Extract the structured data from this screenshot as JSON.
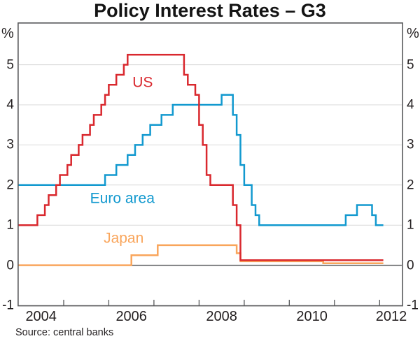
{
  "title": "Policy Interest Rates – G3",
  "source_note": "Source: central banks",
  "axis_unit": "%",
  "frame_color": "#58595b",
  "gridline_color": "#d9d9d9",
  "chart_data": {
    "type": "line",
    "subtype": "step",
    "title": "Policy Interest Rates – G3",
    "ylabel": "%",
    "ylim": [
      -1,
      6.03
    ],
    "xlim": [
      2004,
      2012.5
    ],
    "grid": "horizontal",
    "gridline_values": [
      1,
      2,
      3,
      4,
      5
    ],
    "zero_line_value": 0,
    "ytick_values": [
      5,
      4,
      3,
      2,
      1,
      0,
      -1
    ],
    "xtick_values": [
      2005,
      2006,
      2007,
      2008,
      2009,
      2010,
      2011,
      2012
    ],
    "xtick_labels": [
      {
        "text": "2004",
        "x": 2004.5
      },
      {
        "text": "2006",
        "x": 2006.5
      },
      {
        "text": "2008",
        "x": 2008.5
      },
      {
        "text": "2010",
        "x": 2010.5
      },
      {
        "text": "2012",
        "x": 2012.26
      }
    ],
    "series_end_x": 2012.083,
    "series": [
      {
        "name": "US",
        "color": "#d9282e",
        "label": {
          "text": "US",
          "x": 2006.75,
          "y": 4.56
        },
        "points": [
          [
            2004.0,
            1.0
          ],
          [
            2004.417,
            1.25
          ],
          [
            2004.583,
            1.5
          ],
          [
            2004.667,
            1.75
          ],
          [
            2004.833,
            2.0
          ],
          [
            2004.917,
            2.25
          ],
          [
            2005.083,
            2.5
          ],
          [
            2005.167,
            2.75
          ],
          [
            2005.333,
            3.0
          ],
          [
            2005.417,
            3.25
          ],
          [
            2005.583,
            3.5
          ],
          [
            2005.667,
            3.75
          ],
          [
            2005.833,
            4.0
          ],
          [
            2005.917,
            4.25
          ],
          [
            2006.0,
            4.5
          ],
          [
            2006.167,
            4.75
          ],
          [
            2006.333,
            5.0
          ],
          [
            2006.417,
            5.25
          ],
          [
            2007.667,
            4.75
          ],
          [
            2007.75,
            4.5
          ],
          [
            2007.917,
            4.25
          ],
          [
            2008.0,
            3.5
          ],
          [
            2008.083,
            3.0
          ],
          [
            2008.167,
            2.25
          ],
          [
            2008.25,
            2.0
          ],
          [
            2008.75,
            1.5
          ],
          [
            2008.833,
            1.0
          ],
          [
            2008.917,
            0.125
          ]
        ]
      },
      {
        "name": "Euro area",
        "color": "#1299cf",
        "label": {
          "text": "Euro area",
          "x": 2006.3,
          "y": 1.66
        },
        "points": [
          [
            2004.0,
            2.0
          ],
          [
            2005.917,
            2.25
          ],
          [
            2006.167,
            2.5
          ],
          [
            2006.417,
            2.75
          ],
          [
            2006.583,
            3.0
          ],
          [
            2006.75,
            3.25
          ],
          [
            2006.917,
            3.5
          ],
          [
            2007.167,
            3.75
          ],
          [
            2007.417,
            4.0
          ],
          [
            2008.5,
            4.25
          ],
          [
            2008.75,
            3.75
          ],
          [
            2008.833,
            3.25
          ],
          [
            2008.917,
            2.5
          ],
          [
            2009.0,
            2.0
          ],
          [
            2009.167,
            1.5
          ],
          [
            2009.25,
            1.25
          ],
          [
            2009.333,
            1.0
          ],
          [
            2011.25,
            1.25
          ],
          [
            2011.5,
            1.5
          ],
          [
            2011.833,
            1.25
          ],
          [
            2011.917,
            1.0
          ]
        ]
      },
      {
        "name": "Japan",
        "color": "#f9a55b",
        "label": {
          "text": "Japan",
          "x": 2006.33,
          "y": 0.67
        },
        "points": [
          [
            2004.0,
            0.0
          ],
          [
            2006.5,
            0.25
          ],
          [
            2007.083,
            0.5
          ],
          [
            2008.833,
            0.3
          ],
          [
            2008.917,
            0.1
          ],
          [
            2010.75,
            0.05
          ]
        ]
      }
    ]
  }
}
